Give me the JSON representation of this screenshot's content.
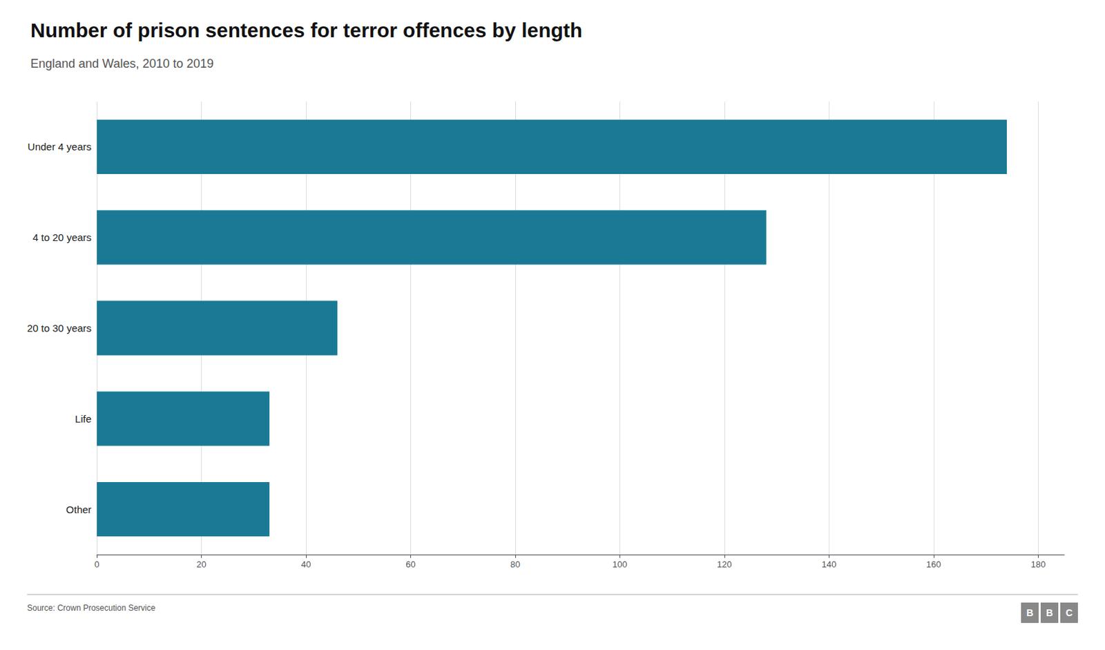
{
  "chart_data": {
    "type": "bar",
    "orientation": "horizontal",
    "title": "Number of prison sentences for terror offences by length",
    "subtitle": "England and Wales, 2010 to 2019",
    "source": "Source: Crown Prosecution Service",
    "logo": [
      "B",
      "B",
      "C"
    ],
    "categories": [
      "Under 4 years",
      "4 to 20 years",
      "20 to 30 years",
      "Life",
      "Other"
    ],
    "values": [
      174,
      128,
      46,
      33,
      33
    ],
    "color": "#1a7a96",
    "xlim": [
      0,
      185
    ],
    "xticks": [
      0,
      20,
      40,
      60,
      80,
      100,
      120,
      140,
      160,
      180
    ],
    "grid": true
  }
}
